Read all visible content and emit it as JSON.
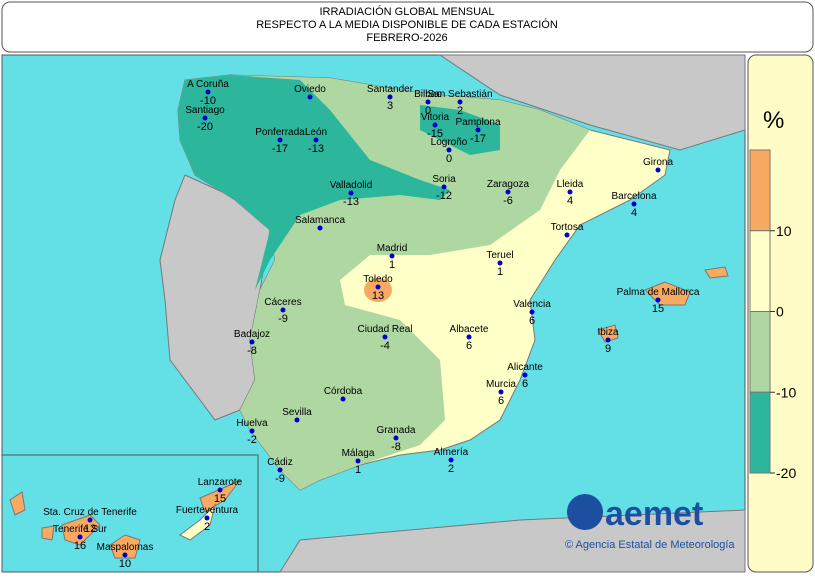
{
  "header": {
    "lines": [
      "IRRADIACIÓN GLOBAL MENSUAL",
      "RESPECTO A LA MEDIA DISPONIBLE DE CADA ESTACIÓN",
      "FEBRERO-2026"
    ]
  },
  "legend": {
    "unit": "%",
    "bands": [
      {
        "color": "#f8aa62"
      },
      {
        "color": "#ffffc8"
      },
      {
        "color": "#aed7a2"
      },
      {
        "color": "#2cb79d"
      }
    ],
    "ticks": [
      10,
      0,
      -10,
      -20
    ]
  },
  "stations": [
    {
      "name": "A Coruña",
      "value": -10
    },
    {
      "name": "Santiago",
      "value": -20
    },
    {
      "name": "Oviedo"
    },
    {
      "name": "Santander",
      "value": 3
    },
    {
      "name": "Bilbao",
      "value": 0
    },
    {
      "name": "San Sebastián",
      "value": 2
    },
    {
      "name": "Vitoria",
      "value": -15
    },
    {
      "name": "Pamplona",
      "value": -17
    },
    {
      "name": "Logroño",
      "value": 0
    },
    {
      "name": "Ponferrada",
      "value": -17
    },
    {
      "name": "León",
      "value": -13
    },
    {
      "name": "Valladolid",
      "value": -13
    },
    {
      "name": "Soria",
      "value": -12
    },
    {
      "name": "Zaragoza",
      "value": -6
    },
    {
      "name": "Lleida",
      "value": 4
    },
    {
      "name": "Girona"
    },
    {
      "name": "Barcelona",
      "value": 4
    },
    {
      "name": "Tortosa"
    },
    {
      "name": "Salamanca"
    },
    {
      "name": "Madrid",
      "value": 1
    },
    {
      "name": "Teruel",
      "value": 1
    },
    {
      "name": "Toledo",
      "value": 13
    },
    {
      "name": "Cáceres",
      "value": -9
    },
    {
      "name": "Badajoz",
      "value": -8
    },
    {
      "name": "Ciudad Real",
      "value": -4
    },
    {
      "name": "Albacete",
      "value": 6
    },
    {
      "name": "Valencia",
      "value": 6
    },
    {
      "name": "Palma de Mallorca",
      "value": 15
    },
    {
      "name": "Ibiza",
      "value": 9
    },
    {
      "name": "Alicante",
      "value": 6
    },
    {
      "name": "Murcia",
      "value": 6
    },
    {
      "name": "Córdoba"
    },
    {
      "name": "Sevilla"
    },
    {
      "name": "Huelva",
      "value": -2
    },
    {
      "name": "Granada",
      "value": -8
    },
    {
      "name": "Almería",
      "value": 2
    },
    {
      "name": "Cádiz",
      "value": -9
    },
    {
      "name": "Málaga",
      "value": 1
    },
    {
      "name": "Lanzarote",
      "value": 15
    },
    {
      "name": "Fuerteventura",
      "value": 2
    },
    {
      "name": "Sta. Cruz de Tenerife",
      "value": 12
    },
    {
      "name": "Tenerife Sur",
      "value": 16
    },
    {
      "name": "Maspalomas",
      "value": 10
    }
  ],
  "logo": {
    "name": "aemet",
    "agency": "© Agencia Estatal de Meteorología"
  }
}
